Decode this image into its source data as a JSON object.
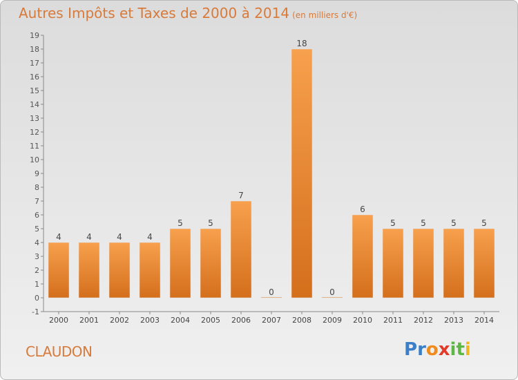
{
  "title": "Autres Impôts et Taxes de 2000 à 2014",
  "title_unit": "(en milliers d'€)",
  "place": "CLAUDON",
  "logo": {
    "text": "Proxiti",
    "letters": [
      "P",
      "r",
      "o",
      "x",
      "i",
      "t",
      "i"
    ],
    "colors": [
      "#3a7fc8",
      "#3a7fc8",
      "#f08b1e",
      "#e03a2a",
      "#5db843",
      "#5db843",
      "#f0b81e"
    ]
  },
  "colors": {
    "bar_light": "#f7a04d",
    "bar_dark": "#d46f1c",
    "title": "#d87a3a",
    "grid": "#aaaaaa"
  },
  "chart_data": {
    "type": "bar",
    "categories": [
      "2000",
      "2001",
      "2002",
      "2003",
      "2004",
      "2005",
      "2006",
      "2007",
      "2008",
      "2009",
      "2010",
      "2011",
      "2012",
      "2013",
      "2014"
    ],
    "values": [
      4,
      4,
      4,
      4,
      5,
      5,
      7,
      0,
      18,
      0,
      6,
      5,
      5,
      5,
      5
    ],
    "ylim": [
      -1,
      19
    ],
    "yticks": [
      -1,
      0,
      1,
      2,
      3,
      4,
      5,
      6,
      7,
      8,
      9,
      10,
      11,
      12,
      13,
      14,
      15,
      16,
      17,
      18,
      19
    ],
    "grid": false
  }
}
